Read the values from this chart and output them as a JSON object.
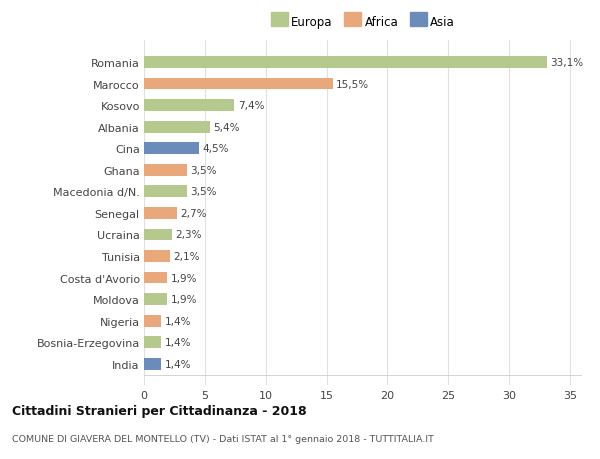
{
  "countries": [
    "Romania",
    "Marocco",
    "Kosovo",
    "Albania",
    "Cina",
    "Ghana",
    "Macedonia d/N.",
    "Senegal",
    "Ucraina",
    "Tunisia",
    "Costa d'Avorio",
    "Moldova",
    "Nigeria",
    "Bosnia-Erzegovina",
    "India"
  ],
  "values": [
    33.1,
    15.5,
    7.4,
    5.4,
    4.5,
    3.5,
    3.5,
    2.7,
    2.3,
    2.1,
    1.9,
    1.9,
    1.4,
    1.4,
    1.4
  ],
  "labels": [
    "33,1%",
    "15,5%",
    "7,4%",
    "5,4%",
    "4,5%",
    "3,5%",
    "3,5%",
    "2,7%",
    "2,3%",
    "2,1%",
    "1,9%",
    "1,9%",
    "1,4%",
    "1,4%",
    "1,4%"
  ],
  "continents": [
    "Europa",
    "Africa",
    "Europa",
    "Europa",
    "Asia",
    "Africa",
    "Europa",
    "Africa",
    "Europa",
    "Africa",
    "Africa",
    "Europa",
    "Africa",
    "Europa",
    "Asia"
  ],
  "colors": {
    "Europa": "#b5c98e",
    "Africa": "#e8a87c",
    "Asia": "#6b8cba"
  },
  "title": "Cittadini Stranieri per Cittadinanza - 2018",
  "subtitle": "COMUNE DI GIAVERA DEL MONTELLO (TV) - Dati ISTAT al 1° gennaio 2018 - TUTTITALIA.IT",
  "xlim": [
    0,
    36
  ],
  "xticks": [
    0,
    5,
    10,
    15,
    20,
    25,
    30,
    35
  ],
  "background_color": "#ffffff",
  "grid_color": "#e0e0e0",
  "bar_height": 0.55
}
